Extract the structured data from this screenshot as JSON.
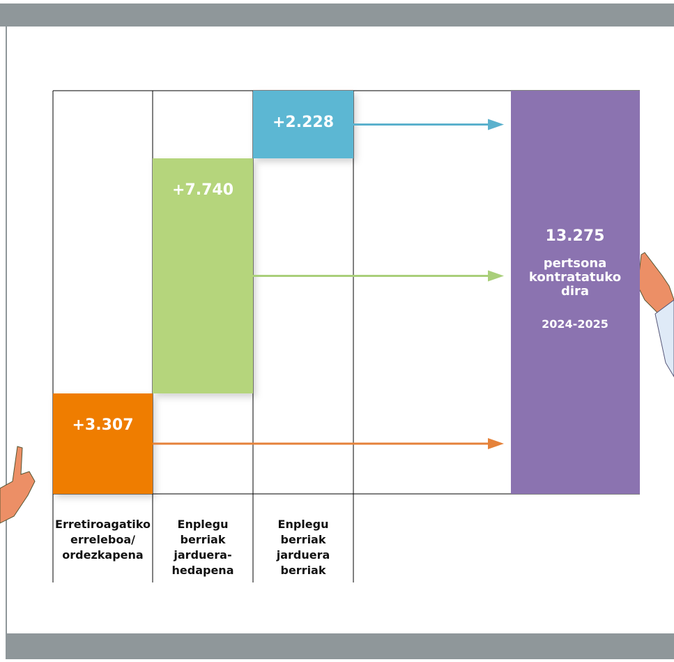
{
  "chart_data": {
    "type": "waterfall",
    "categories": [
      [
        "Erretiroagatiko",
        "erreleboa/",
        "ordezkapena"
      ],
      [
        "Enplegu",
        "berriak",
        "jarduera-",
        "hedapena"
      ],
      [
        "Enplegu",
        "berriak",
        "jarduera",
        "berriak"
      ]
    ],
    "values": [
      3307,
      7740,
      2228
    ],
    "value_labels": [
      "+3.307",
      "+7.740",
      "+2.228"
    ],
    "colors": [
      "#ef7d00",
      "#b5d57b",
      "#5bb7d3"
    ],
    "arrow_colors": [
      "#e5823a",
      "#a9cf7a",
      "#5bb1cd"
    ],
    "total": 13275,
    "total_label": "13.275",
    "total_caption": [
      "pertsona",
      "kontratatuko",
      "dira"
    ],
    "period": "2024-2025",
    "total_color": "#8b73b0"
  }
}
